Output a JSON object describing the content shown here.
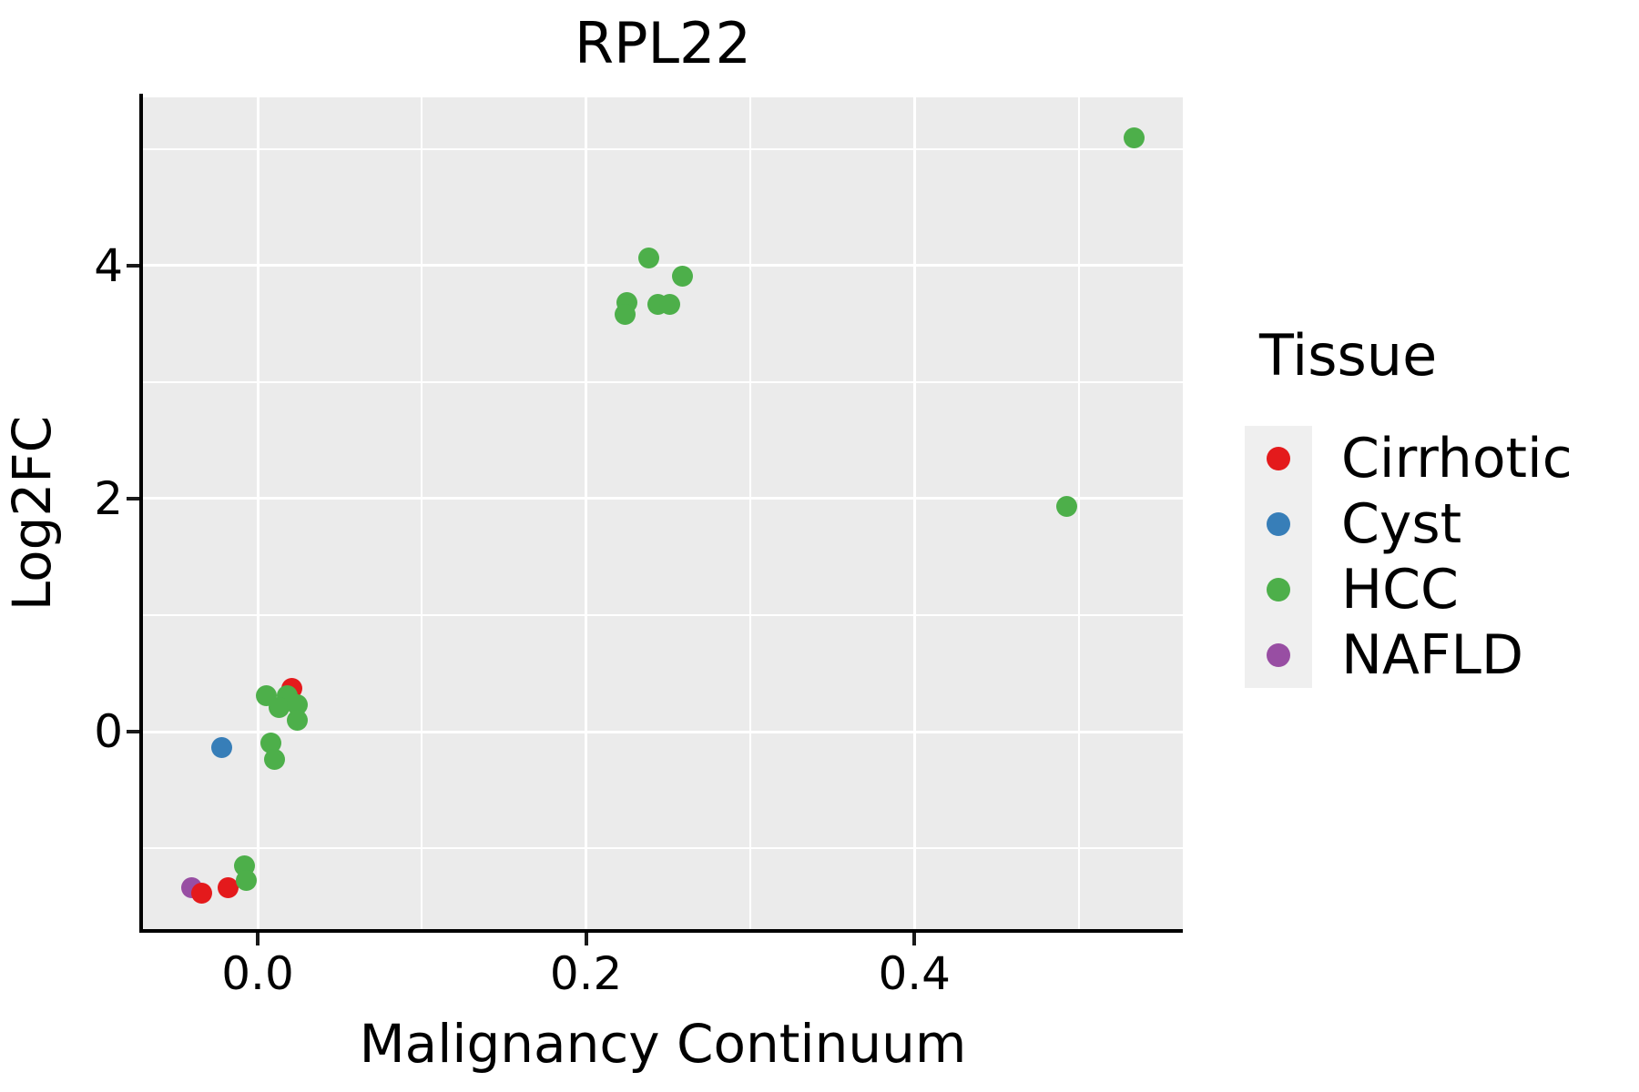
{
  "chart_data": {
    "type": "scatter",
    "title": "RPL22",
    "xlabel": "Malignancy Continuum",
    "ylabel": "Log2FC",
    "xlim": [
      -0.0699,
      0.5635
    ],
    "ylim": [
      -1.6953,
      5.4453
    ],
    "grid": "on",
    "panel_bg": "#ebebeb",
    "grid_color": "#ffffff",
    "axis_color": "#000000",
    "x_ticks": {
      "values": [
        0.0,
        0.2,
        0.4
      ],
      "labels": [
        "0.0",
        "0.2",
        "0.4"
      ]
    },
    "y_ticks": {
      "values": [
        0,
        2,
        4
      ],
      "labels": [
        "0",
        "2",
        "4"
      ]
    },
    "x_minor_gridlines": [
      0.1,
      0.3,
      0.5
    ],
    "y_minor_gridlines": [
      -1,
      1,
      3,
      5
    ],
    "legend": {
      "title": "Tissue",
      "position": "right",
      "key_bg": "#efefef"
    },
    "series": [
      {
        "name": "Cirrhotic",
        "color": "#e41a1c",
        "points": [
          [
            0.021,
            0.37
          ],
          [
            -0.034,
            -1.39
          ],
          [
            -0.018,
            -1.34
          ]
        ]
      },
      {
        "name": "Cyst",
        "color": "#377eb8",
        "points": [
          [
            -0.022,
            -0.14
          ]
        ]
      },
      {
        "name": "HCC",
        "color": "#4daf4a",
        "points": [
          [
            0.238,
            4.07
          ],
          [
            0.259,
            3.91
          ],
          [
            0.225,
            3.68
          ],
          [
            0.224,
            3.58
          ],
          [
            0.244,
            3.67
          ],
          [
            0.251,
            3.67
          ],
          [
            0.534,
            5.1
          ],
          [
            0.493,
            1.93
          ],
          [
            0.005,
            0.31
          ],
          [
            0.018,
            0.31
          ],
          [
            0.013,
            0.21
          ],
          [
            0.024,
            0.23
          ],
          [
            0.024,
            0.1
          ],
          [
            0.008,
            -0.1
          ],
          [
            0.01,
            -0.24
          ],
          [
            -0.008,
            -1.15
          ],
          [
            -0.007,
            -1.28
          ]
        ]
      },
      {
        "name": "NAFLD",
        "color": "#984ea3",
        "points": [
          [
            -0.04,
            -1.34
          ]
        ]
      }
    ],
    "draw_order": [
      3,
      0,
      1,
      2
    ]
  }
}
